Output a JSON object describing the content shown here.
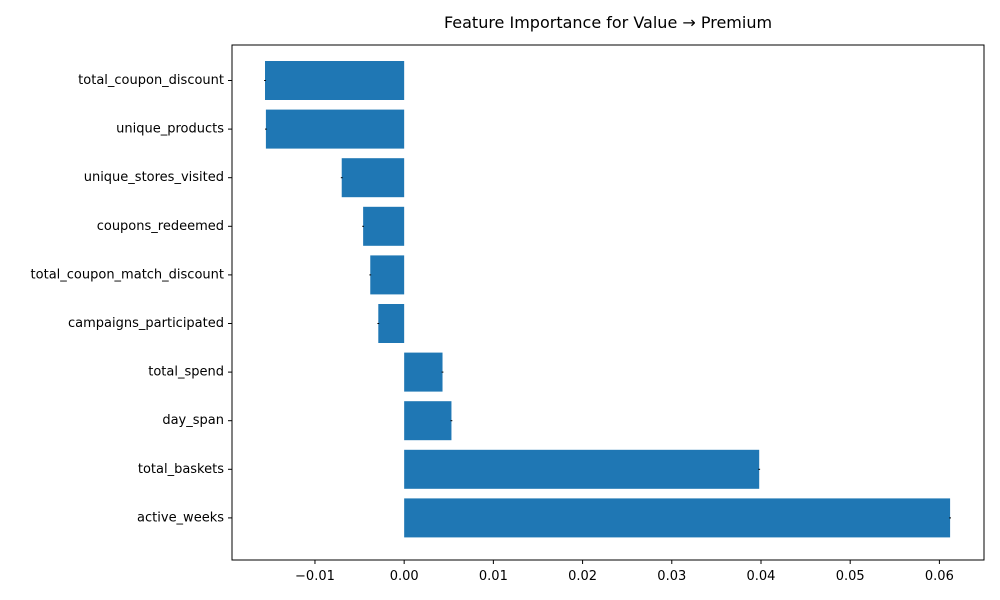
{
  "chart_data": {
    "type": "bar",
    "orientation": "horizontal",
    "title": "Feature Importance for Value → Premium",
    "xlabel": "",
    "ylabel": "",
    "categories": [
      "total_coupon_discount",
      "unique_products",
      "unique_stores_visited",
      "coupons_redeemed",
      "total_coupon_match_discount",
      "campaigns_participated",
      "total_spend",
      "day_span",
      "total_baskets",
      "active_weeks"
    ],
    "values": [
      -0.0156,
      -0.0155,
      -0.007,
      -0.0046,
      -0.0038,
      -0.0029,
      0.0043,
      0.0053,
      0.0398,
      0.0612
    ],
    "error": [
      0.0001,
      0.0001,
      0.0001,
      0.0001,
      0.0001,
      0.0001,
      0.0001,
      0.0001,
      0.0001,
      0.0001
    ],
    "xlim": [
      -0.0193,
      0.065
    ],
    "xticks": [
      -0.01,
      0.0,
      0.01,
      0.02,
      0.03,
      0.04,
      0.05,
      0.06
    ],
    "xtick_labels": [
      "−0.01",
      "0.00",
      "0.01",
      "0.02",
      "0.03",
      "0.04",
      "0.05",
      "0.06"
    ],
    "bar_color": "#1f77b4",
    "grid": false
  }
}
